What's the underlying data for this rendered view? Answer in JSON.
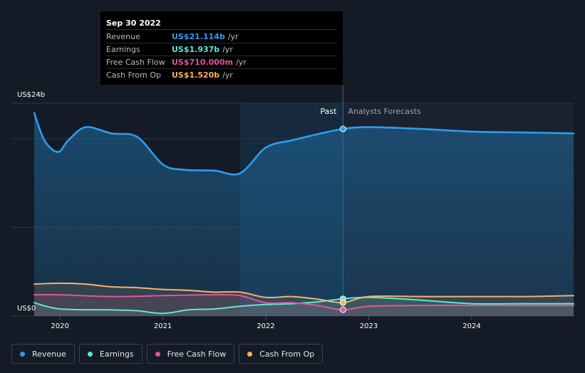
{
  "tooltip": {
    "date": "Sep 30 2022",
    "rows": [
      {
        "label": "Revenue",
        "value": "US$21.114b",
        "unit": "/yr",
        "color": "#2d9cf0"
      },
      {
        "label": "Earnings",
        "value": "US$1.937b",
        "unit": "/yr",
        "color": "#5ee8d1"
      },
      {
        "label": "Free Cash Flow",
        "value": "US$710.000m",
        "unit": "/yr",
        "color": "#e2559a"
      },
      {
        "label": "Cash From Op",
        "value": "US$1.520b",
        "unit": "/yr",
        "color": "#f2b26b"
      }
    ]
  },
  "chart_data": {
    "type": "line",
    "y_axis": {
      "top_label": "US$24b",
      "bottom_label": "US$0",
      "ylim": [
        0,
        24
      ]
    },
    "x_ticks": [
      2020,
      2021,
      2022,
      2023,
      2024
    ],
    "xlim": [
      2019.75,
      2024.99
    ],
    "regions": {
      "past_label": "Past",
      "forecast_label": "Analysts Forecasts",
      "past_end": 2022.75,
      "highlight_start": 2021.75
    },
    "series": [
      {
        "name": "Revenue",
        "color": "#2d9cf0",
        "points": [
          [
            2019.75,
            22.9
          ],
          [
            2019.85,
            19.8
          ],
          [
            2019.98,
            18.5
          ],
          [
            2020.08,
            19.8
          ],
          [
            2020.25,
            21.3
          ],
          [
            2020.5,
            20.6
          ],
          [
            2020.75,
            20.2
          ],
          [
            2021.0,
            17.1
          ],
          [
            2021.2,
            16.5
          ],
          [
            2021.5,
            16.4
          ],
          [
            2021.75,
            16.1
          ],
          [
            2022.0,
            19.0
          ],
          [
            2022.25,
            19.8
          ],
          [
            2022.5,
            20.5
          ],
          [
            2022.75,
            21.1
          ],
          [
            2023.0,
            21.3
          ],
          [
            2023.5,
            21.1
          ],
          [
            2024.0,
            20.8
          ],
          [
            2024.5,
            20.7
          ],
          [
            2024.99,
            20.6
          ]
        ]
      },
      {
        "name": "Earnings",
        "color": "#5ee8d1",
        "points": [
          [
            2019.75,
            1.5
          ],
          [
            2020.0,
            0.8
          ],
          [
            2020.5,
            0.7
          ],
          [
            2020.75,
            0.6
          ],
          [
            2021.0,
            0.3
          ],
          [
            2021.25,
            0.7
          ],
          [
            2021.5,
            0.8
          ],
          [
            2021.75,
            1.1
          ],
          [
            2022.0,
            1.3
          ],
          [
            2022.25,
            1.4
          ],
          [
            2022.5,
            1.6
          ],
          [
            2022.75,
            1.94
          ],
          [
            2023.0,
            2.1
          ],
          [
            2023.5,
            1.8
          ],
          [
            2024.0,
            1.4
          ],
          [
            2024.5,
            1.4
          ],
          [
            2024.99,
            1.4
          ]
        ]
      },
      {
        "name": "Free Cash Flow",
        "color": "#e2559a",
        "points": [
          [
            2019.75,
            2.4
          ],
          [
            2020.0,
            2.4
          ],
          [
            2020.5,
            2.2
          ],
          [
            2021.0,
            2.3
          ],
          [
            2021.5,
            2.4
          ],
          [
            2021.75,
            2.3
          ],
          [
            2022.0,
            1.5
          ],
          [
            2022.25,
            1.5
          ],
          [
            2022.5,
            1.2
          ],
          [
            2022.75,
            0.71
          ],
          [
            2023.0,
            1.1
          ],
          [
            2023.5,
            1.2
          ],
          [
            2024.0,
            1.2
          ],
          [
            2024.5,
            1.2
          ],
          [
            2024.99,
            1.2
          ]
        ]
      },
      {
        "name": "Cash From Op",
        "color": "#f2b26b",
        "points": [
          [
            2019.75,
            3.6
          ],
          [
            2020.0,
            3.7
          ],
          [
            2020.25,
            3.6
          ],
          [
            2020.5,
            3.3
          ],
          [
            2020.75,
            3.2
          ],
          [
            2021.0,
            3.0
          ],
          [
            2021.25,
            2.9
          ],
          [
            2021.5,
            2.7
          ],
          [
            2021.75,
            2.7
          ],
          [
            2022.0,
            2.1
          ],
          [
            2022.25,
            2.2
          ],
          [
            2022.5,
            1.9
          ],
          [
            2022.75,
            1.52
          ],
          [
            2023.0,
            2.2
          ],
          [
            2023.5,
            2.2
          ],
          [
            2024.0,
            2.2
          ],
          [
            2024.5,
            2.2
          ],
          [
            2024.99,
            2.3
          ]
        ]
      }
    ]
  }
}
